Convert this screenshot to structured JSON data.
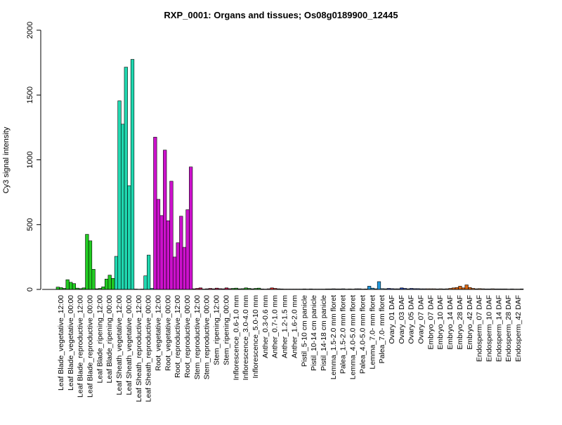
{
  "chart_data": {
    "type": "bar",
    "title": "RXP_0001: Organs and tissues; Os08g0189900_12445",
    "xlabel": "",
    "ylabel": "Cy3 signal intensity",
    "ylim": [
      0,
      2000
    ],
    "yticks": [
      0,
      500,
      1000,
      1500,
      2000
    ],
    "grid": false,
    "legend": "none",
    "categories": [
      "Leaf Blade_vegetative_12:00",
      "Leaf Blade_vegetative_00:00",
      "Leaf Blade_reproductive_12:00",
      "Leaf Blade_reproductive_00:00",
      "Leaf Blade_ripening_12:00",
      "Leaf Blade_ripening_00:00",
      "Leaf Sheath_vegetative_12:00",
      "Leaf Sheath_vegetative_00:00",
      "Leaf Sheath_reproductive_12:00",
      "Leaf Sheath_reproductive_00:00",
      "Root_vegetative_12:00",
      "Root_vegetative_00:00",
      "Root_reproductive_12:00",
      "Root_reproductive_00:00",
      "Stem_reproductive_12:00",
      "Stem_reproductive_00:00",
      "Stem_ripening_12:00",
      "Stem_ripening_00:00",
      "Inflorescence_0.6-1.0 mm",
      "Inflorescence_3.0-4.0 mm",
      "Inflorescence_5.0-10 mm",
      "Anther_0.3-0.6 mm",
      "Anther_0.7-1.0 mm",
      "Anther_1.2-1.5 mm",
      "Anther_1.6-2.0 mm",
      "Pistil_5-10 cm panicle",
      "Pistil_10-14 cm panicle",
      "Pistil_14-18 cm panicle",
      "Lemma_1.5-2.0 mm floret",
      "Palea_1.5-2.0 mm floret",
      "Lemma_4.0-5.0 mm floret",
      "Palea_4.0-5.0 mm floret",
      "Lemma_7.0- mm floret",
      "Palea_7.0- mm floret",
      "Ovary_01 DAF",
      "Ovary_03 DAF",
      "Ovary_05 DAF",
      "Ovary_07 DAF",
      "Embryo_07 DAF",
      "Embryo_10 DAF",
      "Embryo_14 DAF",
      "Embryo_28 DAF",
      "Embryo_42 DAF",
      "Endosperm_07 DAF",
      "Endosperm_10 DAF",
      "Endosperm_14 DAF",
      "Endosperm_28 DAF",
      "Endosperm_42 DAF"
    ],
    "replicates": [
      [
        18,
        14,
        8
      ],
      [
        75,
        55,
        45
      ],
      [
        10,
        6,
        12
      ],
      [
        425,
        375,
        155
      ],
      [
        5,
        8,
        20
      ],
      [
        80,
        110,
        85
      ],
      [
        255,
        1455,
        1275
      ],
      [
        1715,
        800,
        1775
      ],
      [
        3,
        2,
        3
      ],
      [
        105,
        265,
        8
      ],
      [
        1175,
        695,
        570
      ],
      [
        1075,
        530,
        835
      ],
      [
        250,
        360,
        565
      ],
      [
        325,
        615,
        945
      ],
      [
        5,
        8,
        12
      ],
      [
        3,
        5,
        8
      ],
      [
        5,
        10,
        6
      ],
      [
        5,
        12,
        6
      ],
      [
        8,
        10,
        5
      ],
      [
        6,
        12,
        8
      ],
      [
        5,
        8,
        10
      ],
      [
        4,
        3,
        5
      ],
      [
        12,
        8,
        5
      ],
      [
        4,
        3,
        3
      ],
      [
        3,
        3,
        3
      ],
      [
        3,
        4,
        3
      ],
      [
        4,
        3,
        3
      ],
      [
        3,
        3,
        4
      ],
      [
        4,
        5,
        4
      ],
      [
        4,
        5,
        3
      ],
      [
        4,
        3,
        5
      ],
      [
        5,
        3,
        4
      ],
      [
        25,
        10,
        5
      ],
      [
        60,
        6,
        5
      ],
      [
        8,
        6,
        5
      ],
      [
        5,
        12,
        8
      ],
      [
        5,
        8,
        6
      ],
      [
        6,
        5,
        5
      ],
      [
        5,
        5,
        5
      ],
      [
        4,
        5,
        4
      ],
      [
        5,
        8,
        12
      ],
      [
        15,
        25,
        12
      ],
      [
        35,
        15,
        8
      ],
      [
        5,
        6,
        5
      ],
      [
        4,
        4,
        5
      ],
      [
        4,
        4,
        4
      ],
      [
        4,
        3,
        4
      ],
      [
        3,
        3,
        4
      ]
    ],
    "group_colors": [
      "#22cc22",
      "#22cc22",
      "#22cc22",
      "#22cc22",
      "#22cc22",
      "#22cc22",
      "#20d8b0",
      "#20d8b0",
      "#20d8b0",
      "#20d8b0",
      "#cc11cc",
      "#cc11cc",
      "#cc11cc",
      "#cc11cc",
      "#bb1144",
      "#bb1144",
      "#bb1144",
      "#bb1144",
      "#22aa22",
      "#22aa22",
      "#22aa22",
      "#dd2222",
      "#dd2222",
      "#dd2222",
      "#dd2222",
      "#aa6666",
      "#aa6666",
      "#aa6666",
      "#3355aa",
      "#3355aa",
      "#3355aa",
      "#3355aa",
      "#2299dd",
      "#2299dd",
      "#2244bb",
      "#2244bb",
      "#2244bb",
      "#2244bb",
      "#dd6611",
      "#dd6611",
      "#dd6611",
      "#dd6611",
      "#dd6611",
      "#cc6611",
      "#cc6611",
      "#cc6611",
      "#cc6611",
      "#cc6611"
    ]
  }
}
